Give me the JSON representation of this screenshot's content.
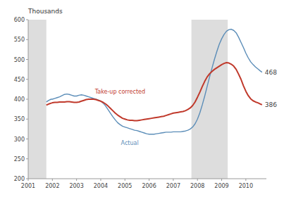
{
  "chart_data": {
    "type": "line",
    "ylabel": "Thousands",
    "xlim": [
      2001.0,
      2010.85
    ],
    "ylim": [
      200,
      600
    ],
    "xticks": [
      2001,
      2002,
      2003,
      2004,
      2005,
      2006,
      2007,
      2008,
      2009,
      2010
    ],
    "yticks": [
      200,
      250,
      300,
      350,
      400,
      450,
      500,
      550,
      600
    ],
    "grid": false,
    "recession_bands": [
      [
        2001.0,
        2001.75
      ],
      [
        2007.75,
        2009.25
      ]
    ],
    "x": [
      2001.75,
      2001.85,
      2001.95,
      2002.0,
      2002.1,
      2002.2,
      2002.3,
      2002.4,
      2002.5,
      2002.6,
      2002.7,
      2002.8,
      2002.9,
      2003.0,
      2003.1,
      2003.2,
      2003.3,
      2003.4,
      2003.5,
      2003.6,
      2003.7,
      2003.8,
      2003.9,
      2004.0,
      2004.1,
      2004.2,
      2004.3,
      2004.4,
      2004.5,
      2004.6,
      2004.7,
      2004.8,
      2004.9,
      2005.0,
      2005.1,
      2005.2,
      2005.3,
      2005.4,
      2005.5,
      2005.6,
      2005.7,
      2005.8,
      2005.9,
      2006.0,
      2006.1,
      2006.2,
      2006.3,
      2006.4,
      2006.5,
      2006.6,
      2006.7,
      2006.8,
      2006.9,
      2007.0,
      2007.1,
      2007.2,
      2007.3,
      2007.4,
      2007.5,
      2007.6,
      2007.7,
      2007.8,
      2007.9,
      2008.0,
      2008.1,
      2008.2,
      2008.3,
      2008.4,
      2008.5,
      2008.6,
      2008.7,
      2008.8,
      2008.9,
      2009.0,
      2009.1,
      2009.2,
      2009.3,
      2009.4,
      2009.5,
      2009.6,
      2009.7,
      2009.8,
      2009.9,
      2010.0,
      2010.1,
      2010.2,
      2010.3,
      2010.4,
      2010.5,
      2010.6,
      2010.67
    ],
    "series": [
      {
        "name": "Actual",
        "color": "#5b8db8",
        "label_x": 2005.2,
        "label_y": 290,
        "values": [
          393,
          397,
          400,
          400,
          402,
          404,
          406,
          409,
          412,
          413,
          412,
          410,
          408,
          408,
          410,
          411,
          410,
          408,
          406,
          404,
          402,
          400,
          398,
          395,
          390,
          383,
          374,
          365,
          356,
          348,
          341,
          336,
          332,
          330,
          328,
          326,
          324,
          322,
          321,
          319,
          317,
          315,
          313,
          312,
          312,
          312,
          313,
          314,
          315,
          316,
          317,
          317,
          317,
          318,
          318,
          318,
          318,
          319,
          320,
          322,
          325,
          330,
          338,
          350,
          366,
          386,
          408,
          432,
          456,
          478,
          500,
          520,
          538,
          552,
          563,
          571,
          575,
          576,
          573,
          567,
          556,
          543,
          530,
          516,
          504,
          494,
          487,
          481,
          476,
          471,
          468
        ]
      },
      {
        "name": "Take-up corrected",
        "color": "#c0392b",
        "label_x": 2004.8,
        "label_y": 418,
        "values": [
          385,
          388,
          390,
          391,
          392,
          392,
          393,
          393,
          393,
          394,
          394,
          393,
          392,
          392,
          393,
          395,
          397,
          399,
          400,
          400,
          400,
          399,
          397,
          395,
          392,
          388,
          383,
          377,
          371,
          365,
          360,
          356,
          352,
          350,
          348,
          347,
          347,
          346,
          346,
          347,
          348,
          349,
          350,
          351,
          352,
          353,
          354,
          355,
          356,
          357,
          359,
          361,
          363,
          365,
          366,
          367,
          368,
          369,
          371,
          374,
          378,
          384,
          393,
          405,
          418,
          432,
          445,
          456,
          464,
          470,
          475,
          479,
          483,
          487,
          490,
          492,
          491,
          488,
          483,
          475,
          463,
          450,
          434,
          420,
          409,
          401,
          396,
          393,
          391,
          388,
          386
        ]
      }
    ],
    "annotations": [
      {
        "text": "468",
        "x": 2010.67,
        "y": 468
      },
      {
        "text": "386",
        "x": 2010.67,
        "y": 386
      }
    ]
  }
}
